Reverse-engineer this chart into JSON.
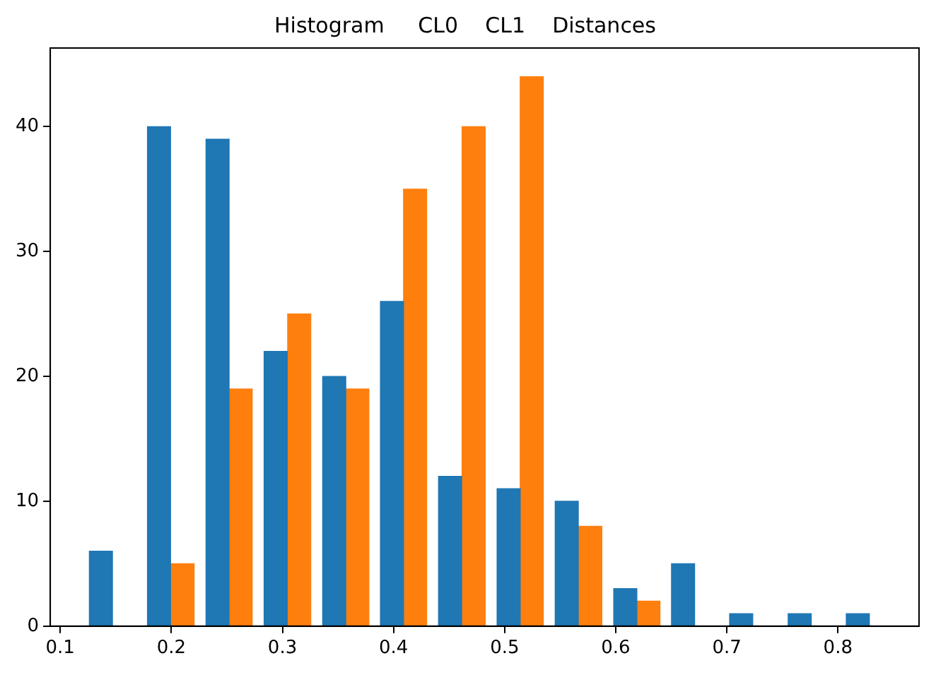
{
  "chart_data": {
    "type": "histogram",
    "title": "Histogram     CL0    CL1    Distances",
    "bins": [
      0.121,
      0.173,
      0.226,
      0.278,
      0.331,
      0.383,
      0.435,
      0.488,
      0.54,
      0.593,
      0.645,
      0.697,
      0.75,
      0.802,
      0.855
    ],
    "series": [
      {
        "color": "#1f77b4",
        "values": [
          6,
          40,
          39,
          22,
          20,
          26,
          12,
          11,
          10,
          3,
          5,
          1,
          1,
          1
        ]
      },
      {
        "color": "#ff7f0e",
        "values": [
          0,
          5,
          19,
          25,
          19,
          35,
          40,
          44,
          8,
          2,
          0,
          0,
          0,
          0
        ]
      }
    ],
    "xlim": [
      0.091,
      0.873
    ],
    "xticks": [
      0.1,
      0.2,
      0.3,
      0.4,
      0.5,
      0.6,
      0.7,
      0.8
    ],
    "ylim": [
      0,
      46.3
    ],
    "yticks": [
      0,
      10,
      20,
      30,
      40
    ],
    "grid": false,
    "legend": false
  }
}
